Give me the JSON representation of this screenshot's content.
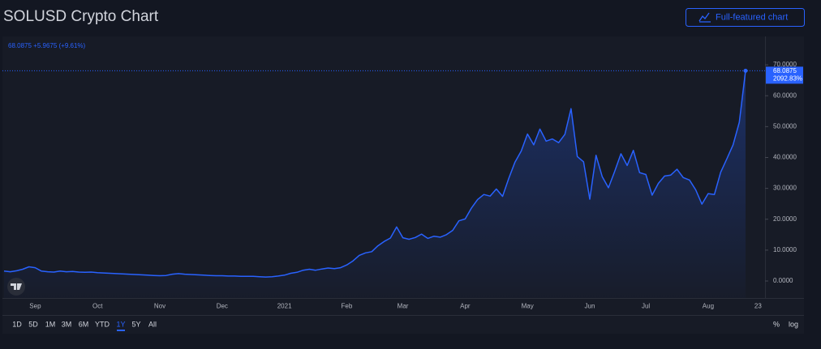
{
  "header": {
    "title": "SOLUSD Crypto Chart",
    "button": "Full-featured chart"
  },
  "chart_data": {
    "type": "area",
    "legend_change": "+5.9675 (+9.61%)",
    "percent_change_label": "2092.83%",
    "color": "#2962ff",
    "grid": false,
    "categories": [
      null,
      null,
      null,
      null,
      null,
      "Sep",
      null,
      null,
      null,
      null,
      null,
      null,
      null,
      null,
      null,
      "Oct",
      null,
      null,
      null,
      null,
      null,
      null,
      null,
      null,
      null,
      "Nov",
      null,
      null,
      null,
      null,
      null,
      null,
      null,
      null,
      null,
      "Dec",
      null,
      null,
      null,
      null,
      null,
      null,
      null,
      null,
      null,
      "2021",
      null,
      null,
      null,
      null,
      null,
      null,
      null,
      null,
      null,
      "Feb",
      null,
      null,
      null,
      null,
      null,
      null,
      null,
      null,
      "Mar",
      null,
      null,
      null,
      null,
      null,
      null,
      null,
      null,
      null,
      "Apr",
      null,
      null,
      null,
      null,
      null,
      null,
      null,
      null,
      null,
      "May",
      null,
      null,
      null,
      null,
      null,
      null,
      null,
      null,
      null,
      "Jun",
      null,
      null,
      null,
      null,
      null,
      null,
      null,
      null,
      "Jul",
      null,
      null,
      null,
      null,
      null,
      null,
      null,
      null,
      null,
      "Aug",
      null,
      null,
      null,
      null,
      null,
      null,
      null,
      "23"
    ],
    "values": [
      3.2,
      3.0,
      3.3,
      3.8,
      4.6,
      4.3,
      3.2,
      3.0,
      2.9,
      3.2,
      3.0,
      3.1,
      2.9,
      2.8,
      2.9,
      2.7,
      2.6,
      2.5,
      2.4,
      2.3,
      2.2,
      2.1,
      2.0,
      1.9,
      1.8,
      1.7,
      1.8,
      2.2,
      2.4,
      2.2,
      2.1,
      2.0,
      1.9,
      1.8,
      1.7,
      1.7,
      1.6,
      1.6,
      1.5,
      1.5,
      1.5,
      1.4,
      1.3,
      1.4,
      1.6,
      1.9,
      2.5,
      2.8,
      3.5,
      3.8,
      3.5,
      3.9,
      4.2,
      4.0,
      4.3,
      5.2,
      6.5,
      8.3,
      9.1,
      9.5,
      11.4,
      12.8,
      13.9,
      17.5,
      14.0,
      13.5,
      14.1,
      15.2,
      13.8,
      14.5,
      14.2,
      15.0,
      16.4,
      19.5,
      20.1,
      23.6,
      26.4,
      28.0,
      27.5,
      29.8,
      27.4,
      33.2,
      38.5,
      42.1,
      47.6,
      44.1,
      49.2,
      45.3,
      46.0,
      44.8,
      47.5,
      55.8,
      40.3,
      38.6,
      26.5,
      40.7,
      33.8,
      30.2,
      35.5,
      41.2,
      37.4,
      42.3,
      35.1,
      34.5,
      27.8,
      31.6,
      34.0,
      34.3,
      36.2,
      33.5,
      32.7,
      29.5,
      24.9,
      28.3,
      28.0,
      35.2,
      39.6,
      44.1,
      51.4,
      68.0875,
      null,
      null
    ],
    "ylim": [
      -5.5,
      79.2
    ],
    "yticks": [
      {
        "value": 0,
        "label": "0.0000"
      },
      {
        "value": 10,
        "label": "10.0000"
      },
      {
        "value": 20,
        "label": "20.0000"
      },
      {
        "value": 30,
        "label": "30.0000"
      },
      {
        "value": 40,
        "label": "40.0000"
      },
      {
        "value": 50,
        "label": "50.0000"
      },
      {
        "value": 60,
        "label": "60.0000"
      },
      {
        "value": 70,
        "label": "70.0000"
      }
    ]
  },
  "toolbar": {
    "ranges": [
      "1D",
      "5D",
      "1M",
      "3M",
      "6M",
      "YTD",
      "1Y",
      "5Y",
      "All"
    ],
    "active_range": "1Y",
    "right": [
      "%",
      "log"
    ]
  }
}
